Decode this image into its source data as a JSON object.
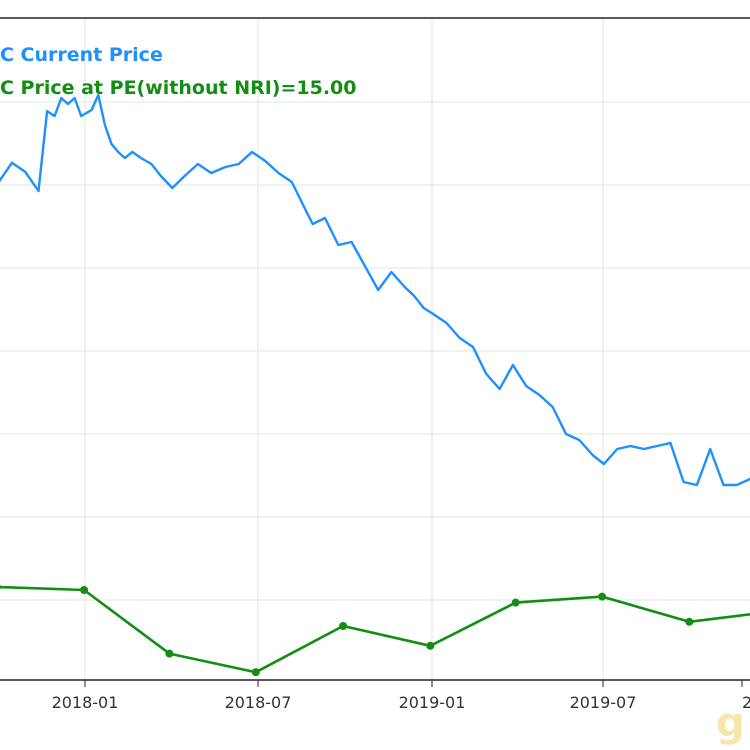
{
  "chart_data": {
    "type": "line",
    "legend": [
      {
        "text": "C Current Price",
        "color": "#1e90ff"
      },
      {
        "text": "C Price at PE(without NRI)=15.00",
        "color": "#138d13"
      }
    ],
    "x_ticks": [
      "2018-01",
      "2018-07",
      "2019-01",
      "2019-07",
      "2"
    ],
    "series": [
      {
        "name": "C Current Price",
        "color": "#1e90ff",
        "x": [
          "2017-10-02",
          "2017-10-16",
          "2017-10-30",
          "2017-11-13",
          "2017-11-22",
          "2017-11-30",
          "2017-12-07",
          "2017-12-14",
          "2017-12-21",
          "2017-12-28",
          "2018-01-08",
          "2018-01-15",
          "2018-01-22",
          "2018-01-29",
          "2018-02-05",
          "2018-02-12",
          "2018-02-20",
          "2018-03-01",
          "2018-03-12",
          "2018-03-22",
          "2018-04-03",
          "2018-04-16",
          "2018-04-30",
          "2018-05-14",
          "2018-05-29",
          "2018-06-12",
          "2018-06-26",
          "2018-07-10",
          "2018-07-24",
          "2018-08-07",
          "2018-08-21",
          "2018-08-29",
          "2018-09-11",
          "2018-09-25",
          "2018-10-09",
          "2018-10-23",
          "2018-11-06",
          "2018-11-20",
          "2018-12-04",
          "2018-12-14",
          "2018-12-24",
          "2019-01-03",
          "2019-01-17",
          "2019-01-31",
          "2019-02-14",
          "2019-02-28",
          "2019-03-14",
          "2019-03-28",
          "2019-04-11",
          "2019-04-25",
          "2019-05-09",
          "2019-05-23",
          "2019-06-06",
          "2019-06-20",
          "2019-07-02",
          "2019-07-16",
          "2019-07-30",
          "2019-08-13",
          "2019-08-27",
          "2019-09-10",
          "2019-09-24",
          "2019-10-08",
          "2019-10-22",
          "2019-11-05",
          "2019-11-19",
          "2019-12-03",
          "2019-12-31"
        ],
        "values": [
          68.0,
          71.2,
          69.7,
          66.5,
          79.8,
          79.0,
          82.0,
          81.0,
          82.0,
          79.0,
          80.0,
          82.5,
          77.5,
          74.3,
          73.0,
          72.0,
          73.0,
          72.0,
          71.0,
          69.0,
          67.0,
          69.0,
          71.0,
          69.5,
          70.5,
          71.0,
          73.0,
          71.5,
          69.5,
          68.0,
          63.5,
          61.0,
          62.0,
          57.5,
          58.0,
          54.0,
          50.0,
          53.0,
          50.5,
          49.0,
          47.0,
          46.0,
          44.5,
          42.0,
          40.5,
          36.0,
          33.5,
          37.5,
          34.0,
          32.5,
          30.5,
          26.0,
          25.0,
          22.5,
          21.0,
          23.5,
          24.0,
          23.5,
          24.0,
          24.5,
          18.0,
          17.5,
          23.5,
          17.5,
          17.5,
          18.5,
          17.0
        ]
      },
      {
        "name": "C Price at PE(without NRI)=15.00",
        "color": "#138d13",
        "x": [
          "2017-09-30",
          "2017-12-31",
          "2018-03-31",
          "2018-06-30",
          "2018-09-30",
          "2018-12-31",
          "2019-03-31",
          "2019-06-30",
          "2019-09-30",
          "2019-12-31"
        ],
        "values": [
          0.5,
          0.0,
          -10.6,
          -13.7,
          -6.0,
          -9.3,
          -2.1,
          -1.1,
          -5.3,
          -3.5
        ]
      }
    ]
  }
}
